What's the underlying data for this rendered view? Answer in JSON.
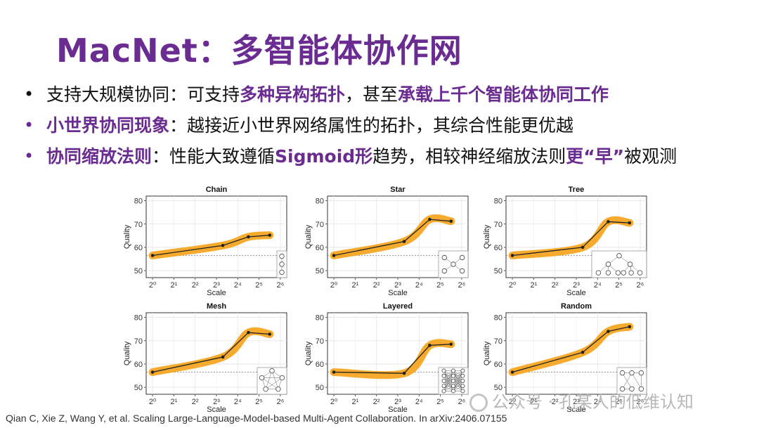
{
  "slide": {
    "title": "MacNet：多智能体协作网",
    "bullets": [
      {
        "dot": "•",
        "parts": [
          {
            "text": "支持大规模协同：可支持",
            "hl": false
          },
          {
            "text": "多种异构拓扑",
            "hl": true
          },
          {
            "text": "，甚至",
            "hl": false
          },
          {
            "text": "承载上千个智能体协同工作",
            "hl": true
          }
        ]
      },
      {
        "dot": "•",
        "parts": [
          {
            "text": "小世界协同现象",
            "hl": true
          },
          {
            "text": "：越接近小世界网络属性的拓扑，其综合性能更优越",
            "hl": false
          }
        ]
      },
      {
        "dot": "•",
        "parts": [
          {
            "text": "协同缩放法则",
            "hl": true
          },
          {
            "text": "：性能大致遵循",
            "hl": false
          },
          {
            "text": "Sigmoid形",
            "hl": true
          },
          {
            "text": "趋势，相较神经缩放法则",
            "hl": false
          },
          {
            "text": "更“早”",
            "hl": true
          },
          {
            "text": "被观测",
            "hl": false
          }
        ]
      }
    ],
    "citation": "Qian C, Xie Z, Wang Y, et al. Scaling Large-Language-Model-based Multi-Agent Collaboration. In arXiv:2406.07155",
    "watermark": "公众号 · 孔某人的低维认知"
  },
  "chart_data": [
    {
      "type": "line",
      "title": "Chain",
      "icon": "chain-topology-icon",
      "xlabel": "Scale",
      "ylabel": "Quality",
      "x": [
        0,
        3.3,
        4.5,
        5.5
      ],
      "y": [
        56.5,
        60.8,
        64.5,
        65.2
      ],
      "baseline": 56.5,
      "xlim": [
        -0.3,
        6.3
      ],
      "ylim": [
        47,
        82
      ],
      "xticks": [
        0,
        2,
        4,
        6
      ],
      "yticks": [
        50,
        60,
        70,
        80
      ],
      "xtick_labels": [
        "2⁰",
        "2²",
        "2⁴",
        "2⁶"
      ],
      "minor_xticks": [
        1,
        3,
        5
      ],
      "minor_xtick_labels": [
        "2¹",
        "2³",
        "2⁵"
      ],
      "band_color": "#f5a623",
      "line_color": "#222222"
    },
    {
      "type": "line",
      "title": "Star",
      "icon": "star-topology-icon",
      "xlabel": "Scale",
      "ylabel": "Quality",
      "x": [
        0,
        3.3,
        4.5,
        5.5
      ],
      "y": [
        56.5,
        62.5,
        72.0,
        71.2
      ],
      "baseline": 56.5,
      "xlim": [
        -0.3,
        6.3
      ],
      "ylim": [
        47,
        82
      ],
      "xticks": [
        0,
        2,
        4,
        6
      ],
      "yticks": [
        50,
        60,
        70,
        80
      ],
      "xtick_labels": [
        "2⁰",
        "2²",
        "2⁴",
        "2⁶"
      ],
      "minor_xticks": [
        1,
        3,
        5
      ],
      "minor_xtick_labels": [
        "2¹",
        "2³",
        "2⁵"
      ],
      "band_color": "#f5a623",
      "line_color": "#222222"
    },
    {
      "type": "line",
      "title": "Tree",
      "icon": "tree-topology-icon",
      "xlabel": "Scale",
      "ylabel": "Quality",
      "x": [
        0,
        3.3,
        4.5,
        5.5
      ],
      "y": [
        56.5,
        60.0,
        71.0,
        70.5
      ],
      "baseline": 56.5,
      "xlim": [
        -0.3,
        6.3
      ],
      "ylim": [
        47,
        82
      ],
      "xticks": [
        0,
        2,
        4,
        6
      ],
      "yticks": [
        50,
        60,
        70,
        80
      ],
      "xtick_labels": [
        "2⁰",
        "2²",
        "2⁴",
        "2⁶"
      ],
      "minor_xticks": [
        1,
        3,
        5
      ],
      "minor_xtick_labels": [
        "2¹",
        "2³",
        "2⁵"
      ],
      "band_color": "#f5a623",
      "line_color": "#222222"
    },
    {
      "type": "line",
      "title": "Mesh",
      "icon": "mesh-topology-icon",
      "xlabel": "Scale",
      "ylabel": "Quality",
      "x": [
        0,
        3.3,
        4.5,
        5.5
      ],
      "y": [
        56.5,
        63.0,
        73.5,
        72.8
      ],
      "baseline": 56.5,
      "xlim": [
        -0.3,
        6.3
      ],
      "ylim": [
        47,
        82
      ],
      "xticks": [
        0,
        2,
        4,
        6
      ],
      "yticks": [
        50,
        60,
        70,
        80
      ],
      "xtick_labels": [
        "2⁰",
        "2²",
        "2⁴",
        "2⁶"
      ],
      "minor_xticks": [
        1,
        3,
        5
      ],
      "minor_xtick_labels": [
        "2¹",
        "2³",
        "2⁵"
      ],
      "band_color": "#f5a623",
      "line_color": "#222222"
    },
    {
      "type": "line",
      "title": "Layered",
      "icon": "layered-topology-icon",
      "xlabel": "Scale",
      "ylabel": "Quality",
      "x": [
        0,
        3.3,
        4.5,
        5.5
      ],
      "y": [
        56.5,
        56.0,
        68.0,
        68.5
      ],
      "baseline": 56.5,
      "xlim": [
        -0.3,
        6.3
      ],
      "ylim": [
        47,
        82
      ],
      "xticks": [
        0,
        2,
        4,
        6
      ],
      "yticks": [
        50,
        60,
        70,
        80
      ],
      "xtick_labels": [
        "2⁰",
        "2²",
        "2⁴",
        "2⁶"
      ],
      "minor_xticks": [
        1,
        3,
        5
      ],
      "minor_xtick_labels": [
        "2¹",
        "2³",
        "2⁵"
      ],
      "band_color": "#f5a623",
      "line_color": "#222222"
    },
    {
      "type": "line",
      "title": "Random",
      "icon": "random-topology-icon",
      "xlabel": "Scale",
      "ylabel": "Quality",
      "x": [
        0,
        3.3,
        4.5,
        5.5
      ],
      "y": [
        56.5,
        65.0,
        74.0,
        76.0
      ],
      "baseline": 56.5,
      "xlim": [
        -0.3,
        6.3
      ],
      "ylim": [
        47,
        82
      ],
      "xticks": [
        0,
        2,
        4,
        6
      ],
      "yticks": [
        50,
        60,
        70,
        80
      ],
      "xtick_labels": [
        "2⁰",
        "2²",
        "2⁴",
        "2⁶"
      ],
      "minor_xticks": [
        1,
        3,
        5
      ],
      "minor_xtick_labels": [
        "2¹",
        "2³",
        "2⁵"
      ],
      "band_color": "#f5a623",
      "line_color": "#222222"
    }
  ]
}
